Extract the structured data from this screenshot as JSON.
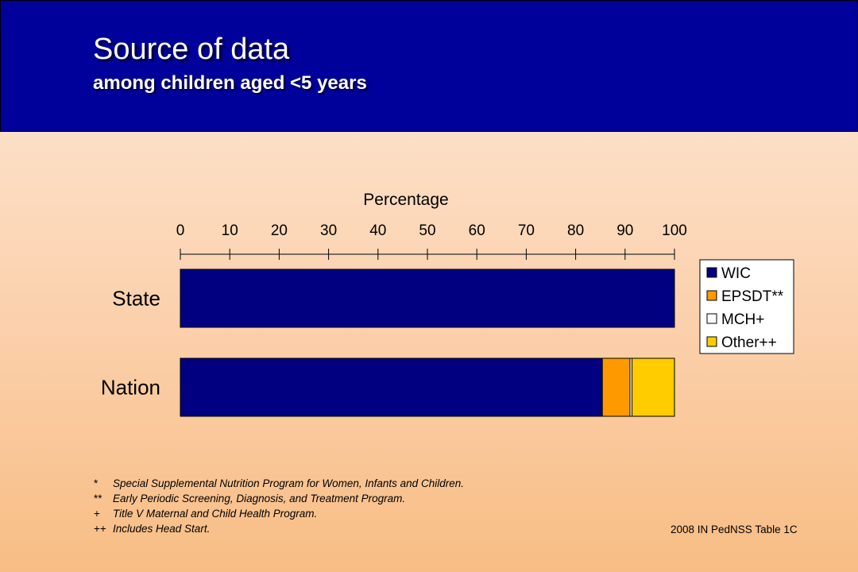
{
  "header": {
    "title": "Source of data",
    "subtitle": "among children aged <5 years"
  },
  "chart_data": {
    "type": "bar",
    "orientation": "horizontal",
    "stacked": true,
    "xlabel": "Percentage",
    "xlim": [
      0,
      100
    ],
    "xticks": [
      "0",
      "10",
      "20",
      "30",
      "40",
      "50",
      "60",
      "70",
      "80",
      "90",
      "100"
    ],
    "categories": [
      "State",
      "Nation"
    ],
    "series": [
      {
        "name": "WIC",
        "color": "#000080",
        "values": [
          100,
          85.4
        ]
      },
      {
        "name": "EPSDT**",
        "color": "#ff9900",
        "values": [
          0,
          5.6
        ]
      },
      {
        "name": "MCH+",
        "color": "#ffffff",
        "values": [
          0,
          0.4
        ]
      },
      {
        "name": "Other++",
        "color": "#ffcc00",
        "values": [
          0,
          8.6
        ]
      }
    ],
    "legend_position": "right",
    "grid": false
  },
  "footnotes": [
    {
      "mark": "*",
      "text": "Special Supplemental  Nutrition Program for Women, Infants and Children."
    },
    {
      "mark": "**",
      "text": "Early Periodic Screening, Diagnosis, and Treatment Program."
    },
    {
      "mark": "+",
      "text": "Title V Maternal and Child Health Program."
    },
    {
      "mark": "++",
      "text": "Includes Head Start."
    }
  ],
  "source": "2008 IN PedNSS Table 1C"
}
